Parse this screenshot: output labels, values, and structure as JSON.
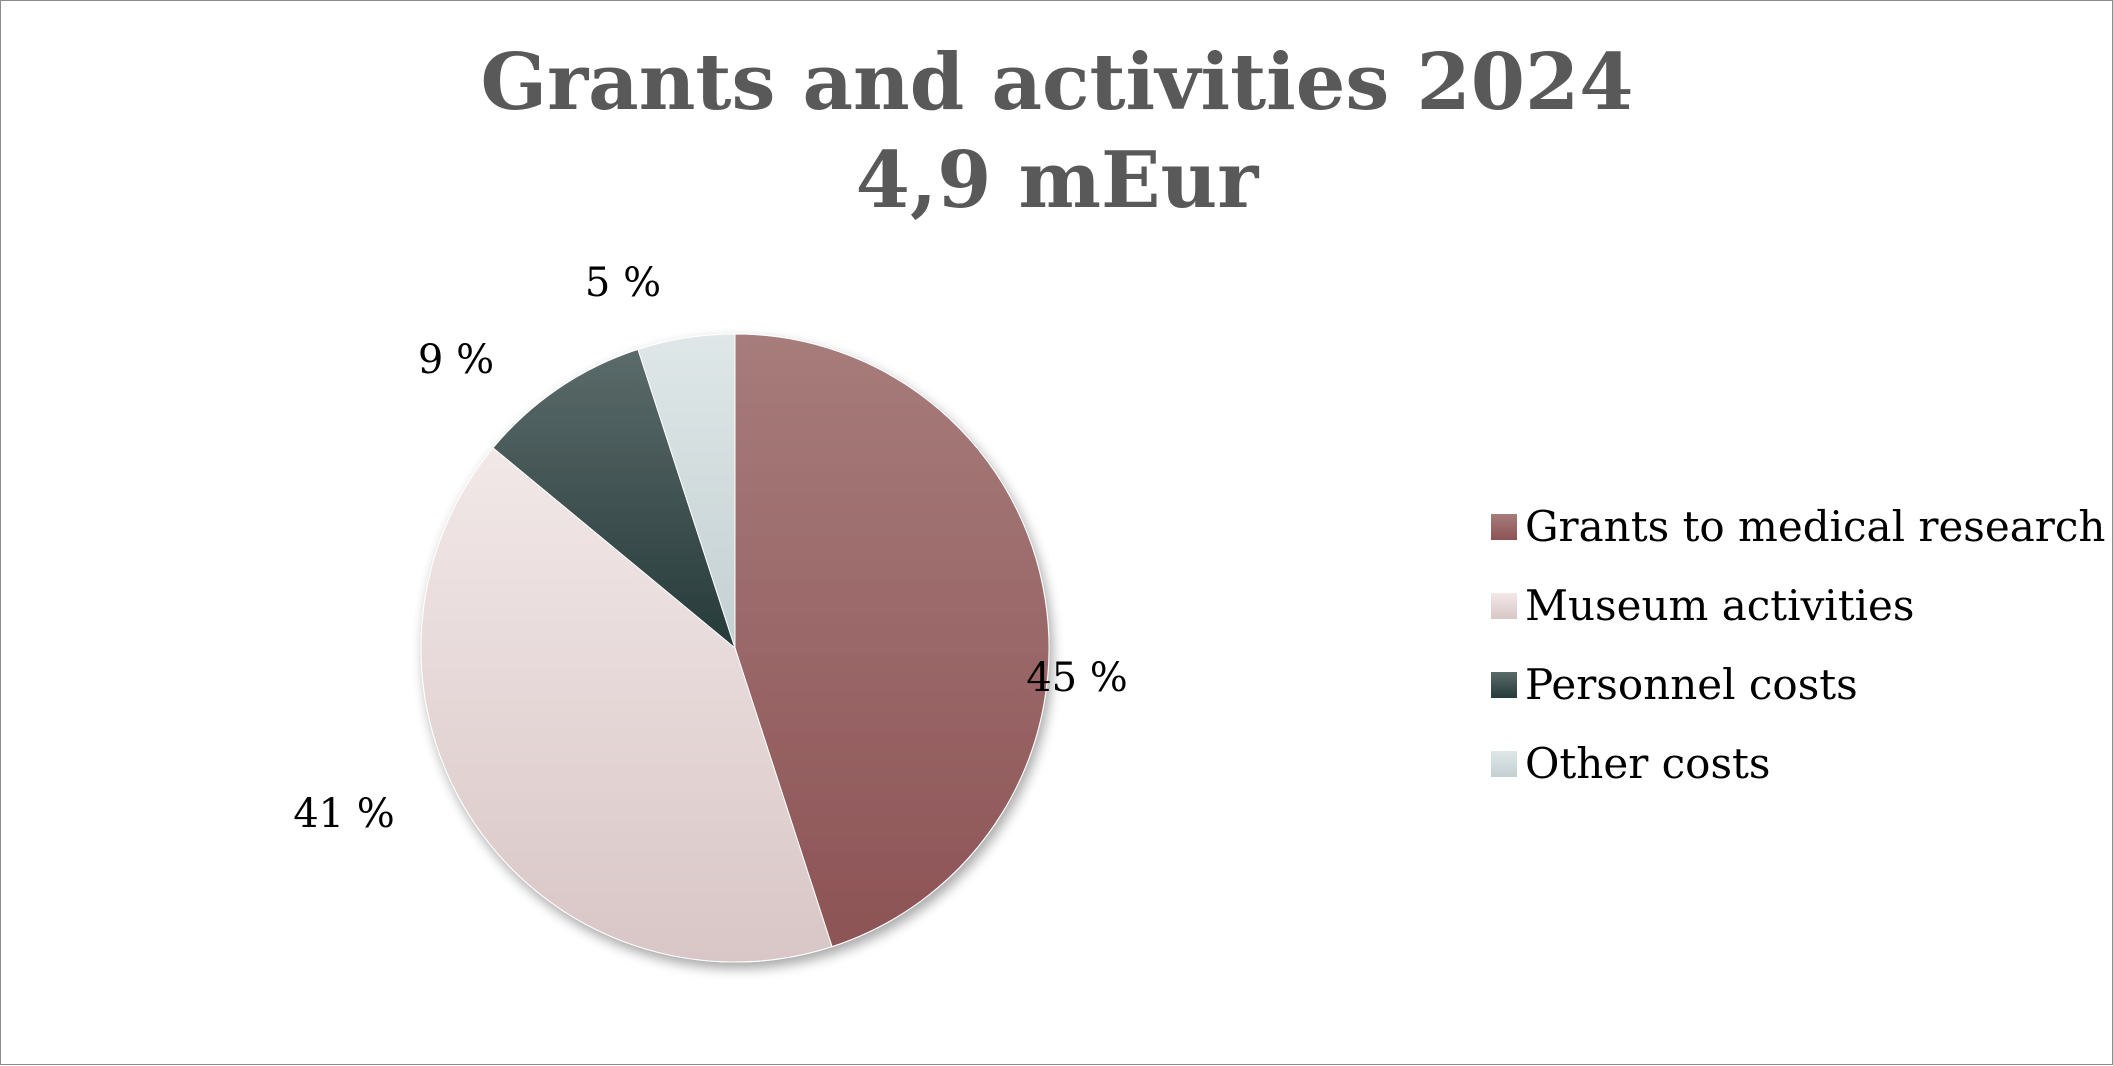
{
  "chart_data": {
    "type": "pie",
    "title_line1": "Grants and activities 2024",
    "title_line2": "4,9 mEur",
    "categories": [
      "Grants to medical research",
      "Museum activities",
      "Personnel costs",
      "Other costs"
    ],
    "values": [
      45,
      41,
      9,
      5
    ],
    "labels": [
      "45 %",
      "41 %",
      "9 %",
      "5 %"
    ],
    "unit": "%",
    "colors": [
      "#9b6060",
      "#ecdede",
      "#354848",
      "#d3dde0"
    ],
    "legend_position": "right",
    "start_angle_deg": 0,
    "direction": "clockwise"
  }
}
